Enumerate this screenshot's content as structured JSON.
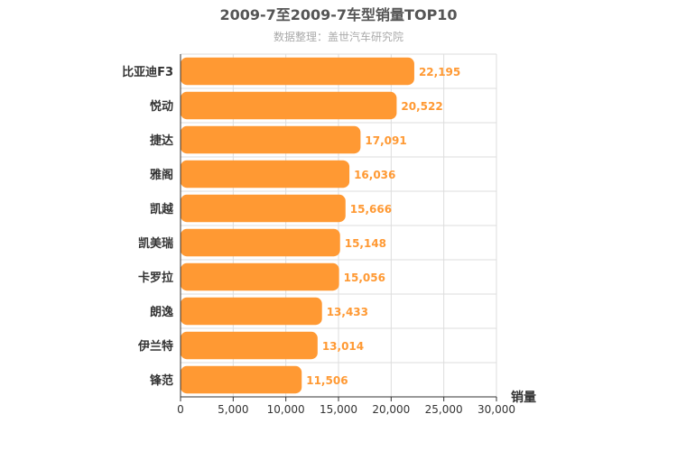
{
  "chart_data": {
    "type": "bar",
    "orientation": "horizontal",
    "title": "2009-7至2009-7车型销量TOP10",
    "subtitle": "数据整理：盖世汽车研究院",
    "categories": [
      "比亚迪F3",
      "悦动",
      "捷达",
      "雅阁",
      "凯越",
      "凯美瑞",
      "卡罗拉",
      "朗逸",
      "伊兰特",
      "锋范"
    ],
    "values": [
      22195,
      20522,
      17091,
      16036,
      15666,
      15148,
      15056,
      13433,
      13014,
      11506
    ],
    "value_labels": [
      "22,195",
      "20,522",
      "17,091",
      "16,036",
      "15,666",
      "15,148",
      "15,056",
      "13,433",
      "13,014",
      "11,506"
    ],
    "xlabel": "销量",
    "ylabel": "",
    "xlim": [
      0,
      30000
    ],
    "x_ticks": [
      0,
      5000,
      10000,
      15000,
      20000,
      25000,
      30000
    ],
    "x_tick_labels": [
      "0",
      "5,000",
      "10,000",
      "15,000",
      "20,000",
      "25,000",
      "30,000"
    ],
    "grid": true,
    "legend": "none",
    "bar_color": "#ff9933",
    "value_label_color": "#ff9933"
  }
}
